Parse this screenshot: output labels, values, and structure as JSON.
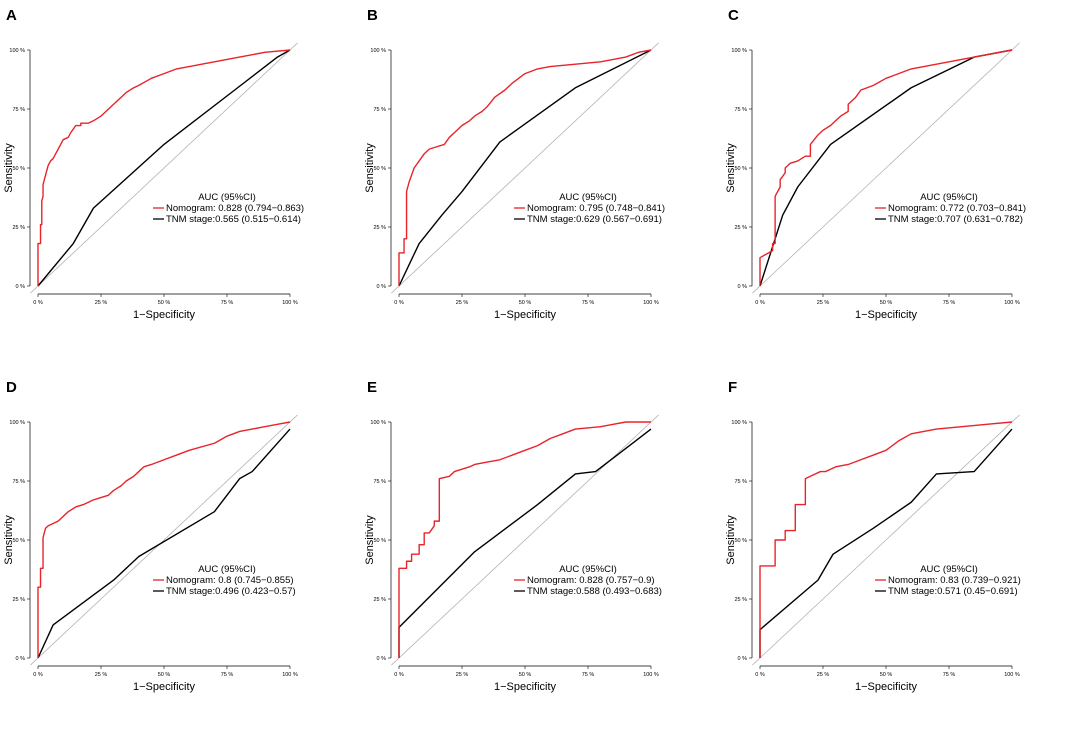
{
  "chart_data": [
    {
      "type": "line",
      "panel_label": "A",
      "xlabel": "1−Specificity",
      "ylabel": "Sensitivity",
      "xlim": [
        0,
        1
      ],
      "ylim": [
        0,
        1
      ],
      "xticks": [
        "0 %",
        "25 %",
        "50 %",
        "75 %",
        "100 %"
      ],
      "yticks": [
        "0 %",
        "25 %",
        "50 %",
        "75 %",
        "100 %"
      ],
      "legend_title": "AUC (95%CI)",
      "series": [
        {
          "name": "Nomogram",
          "label": "Nomogram: 0.828 (0.794−0.863)",
          "color": "#e8242a",
          "x": [
            0,
            0,
            0.01,
            0.01,
            0.015,
            0.015,
            0.02,
            0.02,
            0.03,
            0.04,
            0.05,
            0.06,
            0.07,
            0.08,
            0.09,
            0.1,
            0.12,
            0.13,
            0.15,
            0.17,
            0.17,
            0.2,
            0.22,
            0.25,
            0.27,
            0.3,
            0.33,
            0.35,
            0.38,
            0.4,
            0.45,
            0.5,
            0.55,
            0.6,
            0.7,
            0.8,
            0.9,
            1
          ],
          "y": [
            0,
            0.18,
            0.18,
            0.26,
            0.26,
            0.36,
            0.38,
            0.43,
            0.47,
            0.51,
            0.53,
            0.54,
            0.56,
            0.58,
            0.6,
            0.62,
            0.63,
            0.65,
            0.68,
            0.68,
            0.69,
            0.69,
            0.7,
            0.72,
            0.74,
            0.77,
            0.8,
            0.82,
            0.84,
            0.85,
            0.88,
            0.9,
            0.92,
            0.93,
            0.95,
            0.97,
            0.99,
            1
          ]
        },
        {
          "name": "TNM stage",
          "label": "TNM stage:0.565 (0.515−0.614)",
          "color": "#000000",
          "x": [
            0,
            0.14,
            0.22,
            0.5,
            0.78,
            0.95,
            1
          ],
          "y": [
            0,
            0.18,
            0.33,
            0.6,
            0.83,
            0.97,
            1
          ]
        }
      ]
    },
    {
      "type": "line",
      "panel_label": "B",
      "xlabel": "1−Specificity",
      "ylabel": "Sensitivity",
      "xlim": [
        0,
        1
      ],
      "ylim": [
        0,
        1
      ],
      "xticks": [
        "0 %",
        "25 %",
        "50 %",
        "75 %",
        "100 %"
      ],
      "yticks": [
        "0 %",
        "25 %",
        "50 %",
        "75 %",
        "100 %"
      ],
      "legend_title": "AUC (95%CI)",
      "series": [
        {
          "name": "Nomogram",
          "label": "Nomogram: 0.795 (0.748−0.841)",
          "color": "#e8242a",
          "x": [
            0,
            0,
            0.02,
            0.02,
            0.03,
            0.03,
            0.04,
            0.05,
            0.06,
            0.08,
            0.1,
            0.12,
            0.15,
            0.18,
            0.2,
            0.22,
            0.25,
            0.28,
            0.3,
            0.33,
            0.35,
            0.38,
            0.42,
            0.45,
            0.5,
            0.55,
            0.6,
            0.7,
            0.8,
            0.9,
            0.95,
            1
          ],
          "y": [
            0,
            0.14,
            0.14,
            0.2,
            0.2,
            0.4,
            0.44,
            0.47,
            0.5,
            0.53,
            0.56,
            0.58,
            0.59,
            0.6,
            0.63,
            0.65,
            0.68,
            0.7,
            0.72,
            0.74,
            0.76,
            0.8,
            0.83,
            0.86,
            0.9,
            0.92,
            0.93,
            0.94,
            0.95,
            0.97,
            0.99,
            1
          ]
        },
        {
          "name": "TNM stage",
          "label": "TNM stage:0.629 (0.567−0.691)",
          "color": "#000000",
          "x": [
            0,
            0.08,
            0.17,
            0.25,
            0.4,
            0.7,
            1
          ],
          "y": [
            0,
            0.18,
            0.3,
            0.4,
            0.61,
            0.84,
            1
          ]
        }
      ]
    },
    {
      "type": "line",
      "panel_label": "C",
      "xlabel": "1−Specificity",
      "ylabel": "Sensitivity",
      "xlim": [
        0,
        1
      ],
      "ylim": [
        0,
        1
      ],
      "xticks": [
        "0 %",
        "25 %",
        "50 %",
        "75 %",
        "100 %"
      ],
      "yticks": [
        "0 %",
        "25 %",
        "50 %",
        "75 %",
        "100 %"
      ],
      "legend_title": "AUC (95%CI)",
      "series": [
        {
          "name": "Nomogram",
          "label": "Nomogram: 0.772 (0.703−0.841)",
          "color": "#e8242a",
          "x": [
            0,
            0,
            0.05,
            0.05,
            0.06,
            0.06,
            0.08,
            0.08,
            0.1,
            0.1,
            0.12,
            0.15,
            0.18,
            0.2,
            0.2,
            0.23,
            0.25,
            0.28,
            0.3,
            0.32,
            0.35,
            0.35,
            0.38,
            0.4,
            0.45,
            0.5,
            0.55,
            0.6,
            0.7,
            0.8,
            0.9,
            1
          ],
          "y": [
            0,
            0.12,
            0.15,
            0.18,
            0.18,
            0.38,
            0.42,
            0.45,
            0.48,
            0.5,
            0.52,
            0.53,
            0.55,
            0.55,
            0.6,
            0.64,
            0.66,
            0.68,
            0.7,
            0.72,
            0.74,
            0.77,
            0.8,
            0.83,
            0.85,
            0.88,
            0.9,
            0.92,
            0.94,
            0.96,
            0.98,
            1
          ]
        },
        {
          "name": "TNM stage",
          "label": "TNM stage:0.707 (0.631−0.782)",
          "color": "#000000",
          "x": [
            0,
            0.06,
            0.09,
            0.15,
            0.28,
            0.6,
            0.85,
            1
          ],
          "y": [
            0,
            0.2,
            0.3,
            0.42,
            0.6,
            0.84,
            0.97,
            1
          ]
        }
      ]
    },
    {
      "type": "line",
      "panel_label": "D",
      "xlabel": "1−Specificity",
      "ylabel": "Sensitivity",
      "xlim": [
        0,
        1
      ],
      "ylim": [
        0,
        1
      ],
      "xticks": [
        "0 %",
        "25 %",
        "50 %",
        "75 %",
        "100 %"
      ],
      "yticks": [
        "0 %",
        "25 %",
        "50 %",
        "75 %",
        "100 %"
      ],
      "legend_title": "AUC (95%CI)",
      "series": [
        {
          "name": "Nomogram",
          "label": "Nomogram: 0.8 (0.745−0.855)",
          "color": "#e8242a",
          "x": [
            0,
            0,
            0.01,
            0.01,
            0.02,
            0.02,
            0.03,
            0.04,
            0.06,
            0.08,
            0.1,
            0.12,
            0.15,
            0.18,
            0.2,
            0.22,
            0.25,
            0.28,
            0.3,
            0.33,
            0.35,
            0.38,
            0.4,
            0.42,
            0.45,
            0.5,
            0.55,
            0.6,
            0.7,
            0.75,
            0.8,
            0.85,
            0.9,
            0.95,
            1
          ],
          "y": [
            0,
            0.3,
            0.3,
            0.38,
            0.38,
            0.51,
            0.55,
            0.56,
            0.57,
            0.58,
            0.6,
            0.62,
            0.64,
            0.65,
            0.66,
            0.67,
            0.68,
            0.69,
            0.71,
            0.73,
            0.75,
            0.77,
            0.79,
            0.81,
            0.82,
            0.84,
            0.86,
            0.88,
            0.91,
            0.94,
            0.96,
            0.97,
            0.98,
            0.99,
            1
          ]
        },
        {
          "name": "TNM stage",
          "label": "TNM stage:0.496 (0.423−0.57)",
          "color": "#000000",
          "x": [
            0,
            0.06,
            0.3,
            0.4,
            0.7,
            0.8,
            0.85,
            1
          ],
          "y": [
            0,
            0.14,
            0.33,
            0.43,
            0.62,
            0.76,
            0.79,
            0.97
          ]
        }
      ]
    },
    {
      "type": "line",
      "panel_label": "E",
      "xlabel": "1−Specificity",
      "ylabel": "Sensitivity",
      "xlim": [
        0,
        1
      ],
      "ylim": [
        0,
        1
      ],
      "xticks": [
        "0 %",
        "25 %",
        "50 %",
        "75 %",
        "100 %"
      ],
      "yticks": [
        "0 %",
        "25 %",
        "50 %",
        "75 %",
        "100 %"
      ],
      "legend_title": "AUC (95%CI)",
      "series": [
        {
          "name": "Nomogram",
          "label": "Nomogram: 0.828 (0.757−0.9)",
          "color": "#e8242a",
          "x": [
            0,
            0,
            0.03,
            0.03,
            0.05,
            0.05,
            0.08,
            0.08,
            0.1,
            0.1,
            0.12,
            0.14,
            0.14,
            0.16,
            0.16,
            0.2,
            0.22,
            0.25,
            0.28,
            0.3,
            0.35,
            0.4,
            0.45,
            0.5,
            0.55,
            0.6,
            0.65,
            0.7,
            0.8,
            0.85,
            0.9,
            1
          ],
          "y": [
            0,
            0.38,
            0.38,
            0.41,
            0.41,
            0.44,
            0.44,
            0.48,
            0.48,
            0.53,
            0.53,
            0.56,
            0.58,
            0.58,
            0.76,
            0.77,
            0.79,
            0.8,
            0.81,
            0.82,
            0.83,
            0.84,
            0.86,
            0.88,
            0.9,
            0.93,
            0.95,
            0.97,
            0.98,
            0.99,
            1,
            1
          ]
        },
        {
          "name": "TNM stage",
          "label": "TNM stage:0.588 (0.493−0.683)",
          "color": "#000000",
          "x": [
            0,
            0,
            0.3,
            0.55,
            0.7,
            0.78,
            1
          ],
          "y": [
            0,
            0.13,
            0.45,
            0.65,
            0.78,
            0.79,
            0.97
          ]
        }
      ]
    },
    {
      "type": "line",
      "panel_label": "F",
      "xlabel": "1−Specificity",
      "ylabel": "Sensitivity",
      "xlim": [
        0,
        1
      ],
      "ylim": [
        0,
        1
      ],
      "xticks": [
        "0 %",
        "25 %",
        "50 %",
        "75 %",
        "100 %"
      ],
      "yticks": [
        "0 %",
        "25 %",
        "50 %",
        "75 %",
        "100 %"
      ],
      "legend_title": "AUC (95%CI)",
      "series": [
        {
          "name": "Nomogram",
          "label": "Nomogram: 0.83 (0.739−0.921)",
          "color": "#e8242a",
          "x": [
            0,
            0,
            0.06,
            0.06,
            0.1,
            0.1,
            0.14,
            0.14,
            0.18,
            0.18,
            0.22,
            0.24,
            0.26,
            0.28,
            0.3,
            0.35,
            0.4,
            0.45,
            0.5,
            0.55,
            0.6,
            0.65,
            0.7,
            0.8,
            0.9,
            1
          ],
          "y": [
            0,
            0.39,
            0.39,
            0.5,
            0.5,
            0.54,
            0.54,
            0.65,
            0.65,
            0.76,
            0.78,
            0.79,
            0.79,
            0.8,
            0.81,
            0.82,
            0.84,
            0.86,
            0.88,
            0.92,
            0.95,
            0.96,
            0.97,
            0.98,
            0.99,
            1
          ]
        },
        {
          "name": "TNM stage",
          "label": "TNM stage:0.571 (0.45−0.691)",
          "color": "#000000",
          "x": [
            0,
            0,
            0.23,
            0.29,
            0.45,
            0.6,
            0.7,
            0.85,
            1
          ],
          "y": [
            0,
            0.12,
            0.33,
            0.44,
            0.55,
            0.66,
            0.78,
            0.79,
            0.97
          ]
        }
      ]
    }
  ]
}
